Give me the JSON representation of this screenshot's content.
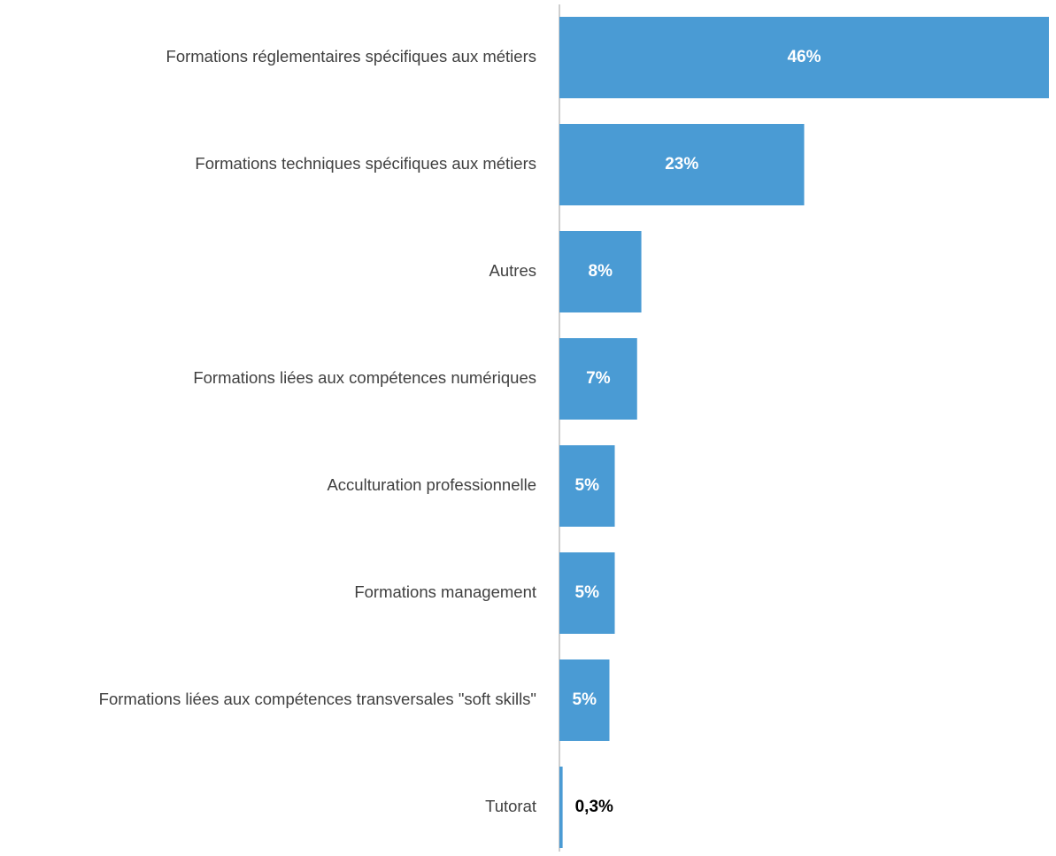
{
  "chart_data": {
    "type": "bar",
    "orientation": "horizontal",
    "categories": [
      "Formations réglementaires spécifiques aux métiers",
      "Formations techniques spécifiques aux métiers",
      "Autres",
      "Formations liées aux compétences numériques",
      "Acculturation professionnelle",
      "Formations management",
      "Formations liées aux compétences transversales \"soft skills\"",
      "Tutorat"
    ],
    "values": [
      46,
      23,
      7.7,
      7.3,
      5.2,
      5.2,
      4.7,
      0.3
    ],
    "value_labels": [
      "46%",
      "23%",
      "8%",
      "7%",
      "5%",
      "5%",
      "5%",
      "0,3%"
    ],
    "color": "#4a9bd4",
    "xlim": [
      0,
      46
    ]
  }
}
